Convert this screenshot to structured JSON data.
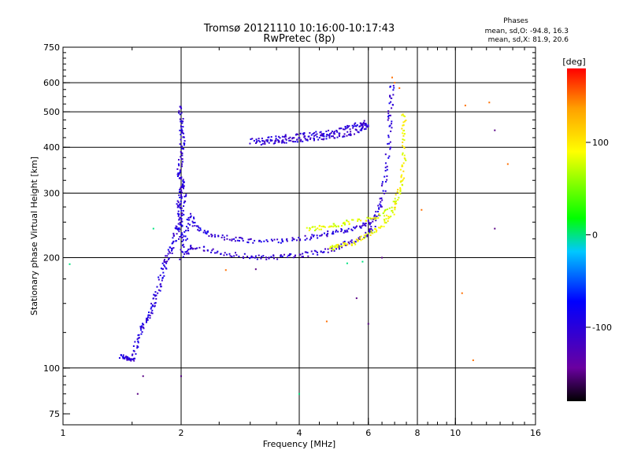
{
  "header": {
    "title_line1": "Tromsø 20121110 10:16:00-10:17:43",
    "title_line2": "RwPretec (8p)"
  },
  "info_box": {
    "heading": "Phases",
    "line_o": "mean, sd,O: -94.8, 16.3",
    "line_x": "mean, sd,X:  81.9, 20.6"
  },
  "colorbar": {
    "unit_label": "[deg]",
    "range": [
      -180,
      180
    ],
    "tick_labels": [
      "100",
      "0",
      "-100"
    ],
    "tick_values": [
      100,
      0,
      -100
    ],
    "colors": [
      "#000000",
      "#6a00a0",
      "#0000ff",
      "#00c8ff",
      "#00ff00",
      "#ffff00",
      "#ffa000",
      "#ff0000"
    ]
  },
  "chart_data": {
    "type": "scatter",
    "xlabel": "Frequency [MHz]",
    "ylabel": "Stationary phase Virtual Height [km]",
    "xscale": "log",
    "yscale": "log",
    "xlim": [
      1,
      16
    ],
    "ylim": [
      70,
      750
    ],
    "x_ticks": [
      1,
      2,
      4,
      6,
      8,
      10,
      16
    ],
    "x_tick_labels": [
      "1",
      "2",
      "4",
      "6",
      "8",
      "10",
      "16"
    ],
    "y_ticks": [
      75,
      100,
      200,
      300,
      400,
      500,
      600,
      750
    ],
    "y_tick_labels": [
      "75",
      "100",
      "200",
      "300",
      "400",
      "500",
      "600",
      "750"
    ],
    "grid_x": [
      2,
      4,
      6,
      8,
      10
    ],
    "grid_y": [
      100,
      200,
      300,
      400,
      500,
      600
    ],
    "grid": true,
    "color_by": "phase_deg",
    "traces": [
      {
        "name": "",
        "phase": -100,
        "points": [
          [
            1.4,
            108
          ],
          [
            1.45,
            106
          ],
          [
            1.5,
            105
          ],
          [
            1.55,
            118
          ],
          [
            1.6,
            130
          ],
          [
            1.65,
            138
          ],
          [
            1.7,
            150
          ],
          [
            1.75,
            165
          ],
          [
            1.8,
            185
          ],
          [
            1.85,
            200
          ],
          [
            1.9,
            215
          ],
          [
            1.95,
            240
          ],
          [
            2.0,
            260
          ],
          [
            2.05,
            300
          ]
        ]
      },
      {
        "name": "",
        "phase": -100,
        "points": [
          [
            2.0,
            200
          ],
          [
            2.05,
            230
          ],
          [
            2.1,
            260
          ],
          [
            2.2,
            240
          ],
          [
            2.4,
            230
          ],
          [
            2.7,
            225
          ],
          [
            3.0,
            222
          ],
          [
            3.5,
            222
          ],
          [
            4.0,
            225
          ],
          [
            4.5,
            230
          ],
          [
            5.0,
            235
          ],
          [
            5.5,
            240
          ],
          [
            6.0,
            248
          ],
          [
            6.3,
            260
          ],
          [
            6.5,
            290
          ],
          [
            6.7,
            350
          ],
          [
            6.8,
            450
          ],
          [
            6.85,
            520
          ],
          [
            6.9,
            600
          ]
        ]
      },
      {
        "name": "",
        "phase": -105,
        "points": [
          [
            2.05,
            205
          ],
          [
            2.15,
            215
          ],
          [
            2.4,
            208
          ],
          [
            2.8,
            203
          ],
          [
            3.2,
            200
          ],
          [
            3.6,
            201
          ],
          [
            4.0,
            203
          ],
          [
            4.5,
            207
          ],
          [
            5.0,
            213
          ],
          [
            5.5,
            222
          ],
          [
            6.0,
            232
          ],
          [
            6.2,
            242
          ]
        ]
      },
      {
        "name": "",
        "phase": -100,
        "points": [
          [
            2.0,
            520
          ],
          [
            2.0,
            460
          ],
          [
            2.02,
            420
          ],
          [
            2.0,
            380
          ],
          [
            1.98,
            340
          ],
          [
            2.02,
            320
          ],
          [
            2.0,
            300
          ],
          [
            1.97,
            280
          ],
          [
            2.0,
            250
          ],
          [
            2.0,
            220
          ]
        ]
      },
      {
        "name": "",
        "phase": -105,
        "points": [
          [
            3.0,
            415
          ],
          [
            3.3,
            420
          ],
          [
            3.6,
            425
          ],
          [
            4.0,
            430
          ],
          [
            4.4,
            435
          ],
          [
            4.8,
            440
          ],
          [
            5.2,
            450
          ],
          [
            5.6,
            460
          ],
          [
            5.9,
            470
          ]
        ]
      },
      {
        "name": "",
        "phase": -105,
        "points": [
          [
            3.2,
            412
          ],
          [
            3.5,
            415
          ],
          [
            3.8,
            418
          ],
          [
            4.2,
            422
          ],
          [
            4.6,
            425
          ],
          [
            5.0,
            430
          ],
          [
            5.4,
            438
          ],
          [
            5.8,
            450
          ],
          [
            6.0,
            462
          ]
        ]
      },
      {
        "name": "",
        "phase": 90,
        "points": [
          [
            4.8,
            212
          ],
          [
            5.0,
            214
          ],
          [
            5.5,
            220
          ],
          [
            6.0,
            230
          ],
          [
            6.5,
            245
          ],
          [
            6.9,
            265
          ],
          [
            7.1,
            290
          ],
          [
            7.3,
            320
          ],
          [
            7.4,
            370
          ],
          [
            7.4,
            440
          ],
          [
            7.4,
            500
          ]
        ]
      },
      {
        "name": "",
        "phase": 80,
        "points": [
          [
            4.2,
            240
          ],
          [
            4.6,
            242
          ],
          [
            5.0,
            245
          ],
          [
            5.4,
            250
          ],
          [
            6.2,
            256
          ],
          [
            6.8,
            270
          ]
        ]
      },
      {
        "name": "",
        "phase": 150,
        "points": [
          [
            6.9,
            620
          ],
          [
            7.0,
            600
          ],
          [
            7.2,
            580
          ],
          [
            10.6,
            520
          ],
          [
            12.2,
            530
          ],
          [
            13.6,
            360
          ],
          [
            8.2,
            270
          ],
          [
            10.4,
            160
          ],
          [
            11.1,
            105
          ],
          [
            2.6,
            185
          ],
          [
            4.7,
            134
          ]
        ]
      },
      {
        "name": "",
        "phase": -150,
        "points": [
          [
            1.6,
            95
          ],
          [
            1.55,
            85
          ],
          [
            2.0,
            95
          ],
          [
            6.0,
            132
          ],
          [
            6.5,
            200
          ],
          [
            5.6,
            155
          ],
          [
            3.1,
            186
          ],
          [
            12.6,
            445
          ],
          [
            12.6,
            240
          ]
        ]
      },
      {
        "name": "",
        "phase": 0,
        "points": [
          [
            1.04,
            192
          ],
          [
            5.3,
            193
          ],
          [
            4.0,
            85
          ],
          [
            1.7,
            240
          ],
          [
            5.8,
            195
          ]
        ]
      }
    ]
  }
}
